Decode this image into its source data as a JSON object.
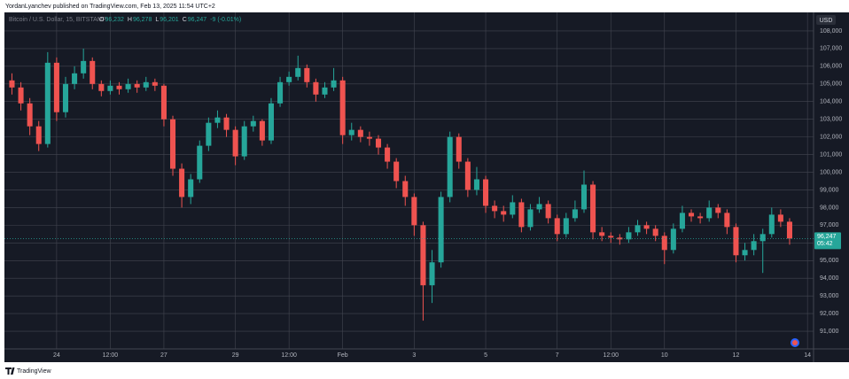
{
  "header": {
    "title": "YordanLyanchev published on TradingView.com, Feb 13, 2025 11:54 UTC+2"
  },
  "footer": {
    "brand": "TradingView"
  },
  "chart_data": {
    "type": "candlestick",
    "legend": {
      "symbol": "Bitcoin / U.S. Dollar, 15, BITSTAMP",
      "ohlc": [
        {
          "label": "O",
          "value": "96,232"
        },
        {
          "label": "H",
          "value": "96,278"
        },
        {
          "label": "L",
          "value": "96,201"
        },
        {
          "label": "C",
          "value": "96,247"
        }
      ],
      "change": "-9 (-0.01%)"
    },
    "currency": "USD",
    "last_price_label": "96,247",
    "countdown": "05:42",
    "up_color": "#26a69a",
    "down_color": "#ef5350",
    "grid": true,
    "xlim": [
      -1.46,
      21.17
    ],
    "xticks": [
      {
        "value": 0,
        "label": "24"
      },
      {
        "value": 1.5,
        "label": "12:00"
      },
      {
        "value": 3,
        "label": "27"
      },
      {
        "value": 5,
        "label": "29"
      },
      {
        "value": 6.5,
        "label": "12:00"
      },
      {
        "value": 8,
        "label": "Feb"
      },
      {
        "value": 10,
        "label": "3"
      },
      {
        "value": 12,
        "label": "5"
      },
      {
        "value": 14,
        "label": "7"
      },
      {
        "value": 15.5,
        "label": "12:00"
      },
      {
        "value": 17,
        "label": "10"
      },
      {
        "value": 19,
        "label": "12"
      },
      {
        "value": 21,
        "label": "14"
      }
    ],
    "ylim": [
      90000,
      109000
    ],
    "yticks": [
      {
        "value": 91000,
        "label": "91,000"
      },
      {
        "value": 92000,
        "label": "92,000"
      },
      {
        "value": 93000,
        "label": "93,000"
      },
      {
        "value": 94000,
        "label": "94,000"
      },
      {
        "value": 95000,
        "label": "95,000"
      },
      {
        "value": 96000,
        "label": "96,000"
      },
      {
        "value": 97000,
        "label": "97,000"
      },
      {
        "value": 98000,
        "label": "98,000"
      },
      {
        "value": 99000,
        "label": "99,000"
      },
      {
        "value": 100000,
        "label": "100,000"
      },
      {
        "value": 101000,
        "label": "101,000"
      },
      {
        "value": 102000,
        "label": "102,000"
      },
      {
        "value": 103000,
        "label": "103,000"
      },
      {
        "value": 104000,
        "label": "104,000"
      },
      {
        "value": 105000,
        "label": "105,000"
      },
      {
        "value": 106000,
        "label": "106,000"
      },
      {
        "value": 107000,
        "label": "107,000"
      },
      {
        "value": 108000,
        "label": "108,000"
      }
    ],
    "x": [
      -1.25,
      -1,
      -0.75,
      -0.5,
      -0.25,
      0,
      0.25,
      0.5,
      0.75,
      1,
      1.25,
      1.5,
      1.75,
      2,
      2.25,
      2.5,
      2.75,
      3,
      3.25,
      3.5,
      3.75,
      4,
      4.25,
      4.5,
      4.75,
      5,
      5.25,
      5.5,
      5.75,
      6,
      6.25,
      6.5,
      6.75,
      7,
      7.25,
      7.5,
      7.75,
      8,
      8.25,
      8.5,
      8.75,
      9,
      9.25,
      9.5,
      9.75,
      10,
      10.25,
      10.5,
      10.75,
      11,
      11.25,
      11.5,
      11.75,
      12,
      12.25,
      12.5,
      12.75,
      13,
      13.25,
      13.5,
      13.75,
      14,
      14.25,
      14.5,
      14.75,
      15,
      15.25,
      15.5,
      15.75,
      16,
      16.25,
      16.5,
      16.75,
      17,
      17.25,
      17.5,
      17.75,
      18,
      18.25,
      18.5,
      18.75,
      19,
      19.25,
      19.5,
      19.75,
      20,
      20.25,
      20.5
    ],
    "open": [
      105200,
      104800,
      103900,
      102600,
      101600,
      106200,
      103400,
      105000,
      105600,
      106300,
      105000,
      104600,
      104900,
      104700,
      105000,
      104800,
      105100,
      104900,
      103000,
      100200,
      98600,
      99600,
      101500,
      102800,
      103100,
      102400,
      100900,
      102600,
      102900,
      101800,
      103900,
      105100,
      105400,
      105900,
      105100,
      104400,
      104800,
      105200,
      102100,
      102400,
      102000,
      101900,
      101400,
      100600,
      99500,
      98600,
      97000,
      93600,
      94900,
      98600,
      102000,
      100600,
      99000,
      99600,
      98100,
      97800,
      97600,
      98300,
      96900,
      97900,
      98200,
      97400,
      96500,
      97400,
      97900,
      99300,
      96600,
      96400,
      96300,
      96200,
      96600,
      97000,
      96800,
      96400,
      95600,
      96800,
      97700,
      97500,
      97400,
      98000,
      97700,
      96900,
      95300,
      95600,
      96100,
      96500,
      97600,
      97200
    ],
    "high": [
      105600,
      105100,
      104200,
      102900,
      106800,
      106500,
      105400,
      106000,
      107000,
      106500,
      105200,
      105200,
      105100,
      105300,
      105200,
      105400,
      105300,
      105000,
      103200,
      100500,
      99900,
      101800,
      103100,
      103500,
      103300,
      102600,
      102900,
      103200,
      103000,
      104200,
      105400,
      105700,
      106600,
      106100,
      105300,
      105100,
      105900,
      105400,
      102800,
      102600,
      102300,
      102100,
      101600,
      100800,
      99800,
      98800,
      97200,
      95600,
      98900,
      102300,
      102200,
      100800,
      100300,
      99800,
      98400,
      98100,
      98700,
      98500,
      98200,
      98600,
      98400,
      97600,
      97700,
      98400,
      100100,
      99500,
      96900,
      96600,
      96500,
      96900,
      97300,
      97200,
      97000,
      96600,
      97100,
      98100,
      97900,
      97700,
      98400,
      98200,
      97900,
      97100,
      96000,
      96500,
      96800,
      98000,
      97900,
      97400
    ],
    "low": [
      104400,
      103500,
      102100,
      101200,
      101400,
      102900,
      103100,
      104700,
      105300,
      104700,
      104300,
      104400,
      104400,
      104500,
      104500,
      104600,
      104600,
      102600,
      99800,
      98000,
      98200,
      99400,
      101200,
      102500,
      102000,
      100400,
      100700,
      102300,
      101500,
      101600,
      103700,
      104900,
      105200,
      104800,
      104000,
      104200,
      104600,
      101600,
      101800,
      101700,
      101500,
      101000,
      100200,
      99100,
      98100,
      96400,
      91600,
      92600,
      94600,
      98300,
      100200,
      98600,
      98700,
      97700,
      97400,
      97200,
      97400,
      96600,
      96700,
      97700,
      97100,
      96100,
      96300,
      97200,
      97700,
      96200,
      96100,
      96000,
      95900,
      96000,
      96400,
      96500,
      96100,
      94800,
      95400,
      96600,
      97200,
      97100,
      97200,
      97400,
      96500,
      94900,
      95000,
      95300,
      94300,
      96300,
      96900,
      95900
    ],
    "close": [
      104800,
      103900,
      102600,
      101600,
      106200,
      103400,
      105000,
      105600,
      106300,
      105000,
      104600,
      104900,
      104700,
      105000,
      104800,
      105100,
      104900,
      103000,
      100200,
      98600,
      99600,
      101500,
      102800,
      103100,
      102400,
      100900,
      102600,
      102900,
      101800,
      103900,
      105100,
      105400,
      105900,
      105100,
      104400,
      104800,
      105200,
      102100,
      102400,
      102000,
      101900,
      101400,
      100600,
      99500,
      98600,
      97000,
      93600,
      94900,
      98600,
      102000,
      100600,
      99000,
      99600,
      98100,
      97800,
      97600,
      98300,
      96900,
      97900,
      98200,
      97400,
      96500,
      97400,
      97900,
      99300,
      96600,
      96400,
      96300,
      96200,
      96600,
      97000,
      96800,
      96400,
      95600,
      96800,
      97700,
      97500,
      97400,
      98000,
      97700,
      96900,
      95300,
      95600,
      96100,
      96500,
      97600,
      97200,
      96247
    ]
  }
}
